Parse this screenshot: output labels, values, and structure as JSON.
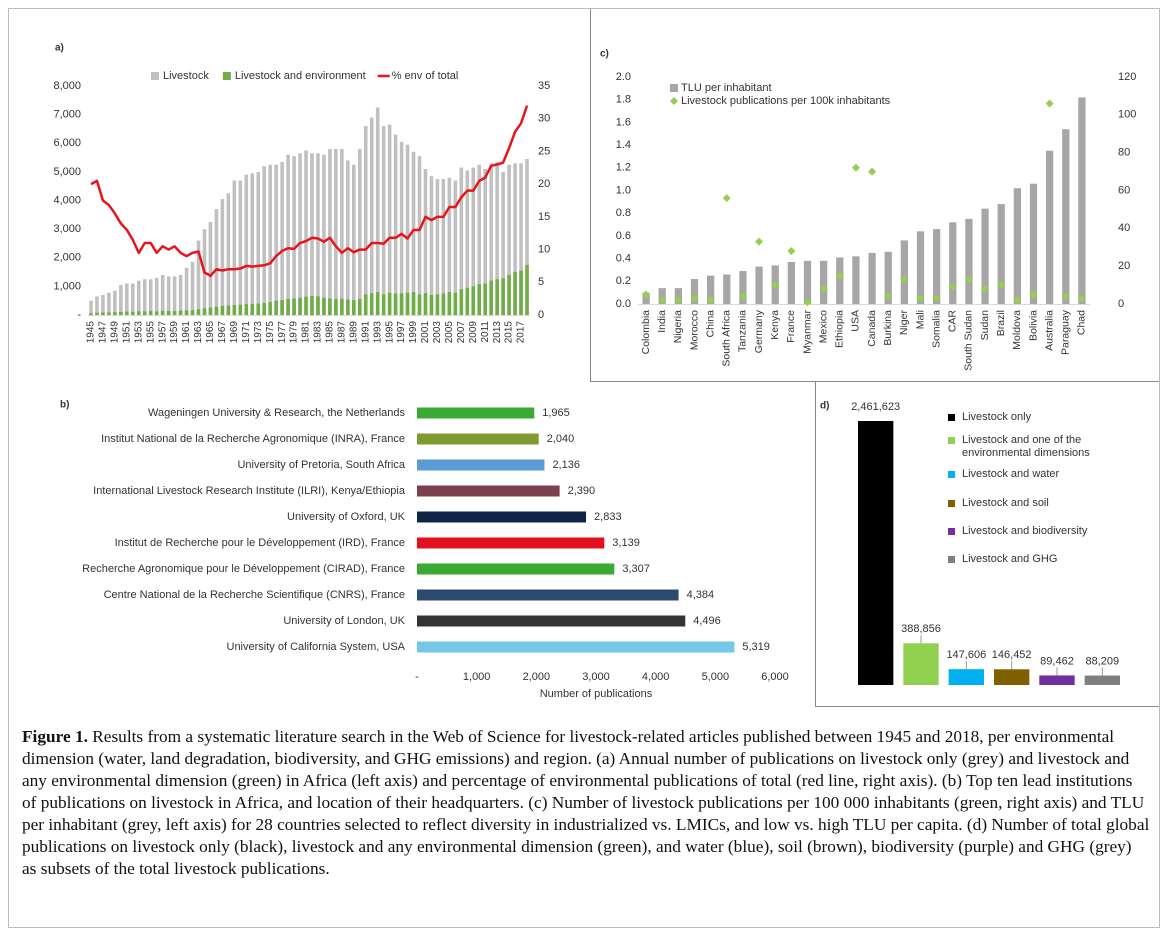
{
  "chart_data": [
    {
      "type": "bar",
      "panel": "a)",
      "legend": "top",
      "categories": [
        "1945",
        null,
        "1947",
        null,
        "1949",
        null,
        "1951",
        null,
        "1953",
        null,
        "1955",
        null,
        "1957",
        null,
        "1959",
        null,
        "1961",
        null,
        "1963",
        null,
        "1965",
        null,
        "1967",
        null,
        "1969",
        null,
        "1971",
        null,
        "1973",
        null,
        "1975",
        null,
        "1977",
        null,
        "1979",
        null,
        "1981",
        null,
        "1983",
        null,
        "1985",
        null,
        "1987",
        null,
        "1989",
        null,
        "1991",
        null,
        "1993",
        null,
        "1995",
        null,
        "1997",
        null,
        "1999",
        null,
        "2001",
        null,
        "2003",
        null,
        "2005",
        null,
        "2007",
        null,
        "2009",
        null,
        "2011",
        null,
        "2013",
        null,
        "2015",
        null,
        "2017",
        null
      ],
      "series": [
        {
          "name": "Livestock",
          "color": "#c0c0c0",
          "values": [
            500,
            650,
            700,
            780,
            850,
            1050,
            1100,
            1100,
            1200,
            1250,
            1250,
            1300,
            1400,
            1350,
            1350,
            1400,
            1650,
            1850,
            2600,
            3000,
            3250,
            3700,
            4050,
            4250,
            4700,
            4700,
            4900,
            4950,
            5000,
            5200,
            5250,
            5250,
            5350,
            5600,
            5550,
            5650,
            5750,
            5650,
            5650,
            5600,
            5800,
            5800,
            5800,
            5400,
            5250,
            5800,
            6600,
            6900,
            7250,
            6600,
            6650,
            6300,
            6050,
            5950,
            5700,
            5550,
            5100,
            4850,
            4750,
            4750,
            4800,
            4700,
            5150,
            5050,
            5150,
            5250,
            5100,
            5300,
            5350,
            5000,
            5250,
            5300,
            5300,
            5450
          ]
        },
        {
          "name": "Livestock and environment",
          "color": "#70ad47",
          "values": [
            60,
            80,
            90,
            90,
            100,
            110,
            120,
            110,
            130,
            130,
            140,
            130,
            150,
            140,
            140,
            150,
            160,
            170,
            200,
            230,
            260,
            290,
            320,
            330,
            350,
            360,
            380,
            390,
            400,
            420,
            450,
            500,
            520,
            560,
            580,
            600,
            640,
            660,
            650,
            600,
            580,
            560,
            560,
            540,
            520,
            560,
            720,
            760,
            800,
            720,
            780,
            750,
            760,
            780,
            800,
            720,
            760,
            700,
            720,
            750,
            800,
            780,
            900,
            950,
            1000,
            1080,
            1100,
            1200,
            1250,
            1280,
            1400,
            1500,
            1550,
            1750
          ]
        },
        {
          "name": "% env of total",
          "color": "#e8141c",
          "type": "line",
          "axis": "y2",
          "values": [
            20,
            20.5,
            17.5,
            16.8,
            15.5,
            14,
            13,
            11.5,
            9.5,
            11,
            11,
            9.5,
            10.5,
            10,
            10.5,
            9.5,
            9,
            9.5,
            9.7,
            6.5,
            6,
            7,
            6.8,
            7,
            7,
            7.1,
            7.5,
            7.4,
            7.5,
            7.6,
            7.9,
            9,
            9.8,
            10.2,
            10.1,
            11,
            11.3,
            11.8,
            11.7,
            11.2,
            11.8,
            10.5,
            9.5,
            10.2,
            9.6,
            10,
            10,
            11,
            11,
            10.9,
            11.8,
            11.8,
            12.4,
            11.7,
            13,
            13,
            15,
            14.5,
            15,
            15,
            16.5,
            16.5,
            18,
            19,
            19,
            20.5,
            21,
            22.8,
            23,
            23.3,
            25.5,
            28,
            29.3,
            32
          ]
        }
      ],
      "ylim": [
        0,
        8000
      ],
      "yticks": [
        {
          "value": 0,
          "label": "-"
        },
        {
          "value": 1000,
          "label": "1,000"
        },
        {
          "value": 2000,
          "label": "2,000"
        },
        {
          "value": 3000,
          "label": "3,000"
        },
        {
          "value": 4000,
          "label": "4,000"
        },
        {
          "value": 5000,
          "label": "5,000"
        },
        {
          "value": 6000,
          "label": "6,000"
        },
        {
          "value": 7000,
          "label": "7,000"
        },
        {
          "value": 8000,
          "label": "8,000"
        }
      ],
      "y2lim": [
        0,
        35
      ],
      "y2ticks": [
        0,
        5,
        10,
        15,
        20,
        25,
        30,
        35
      ]
    },
    {
      "type": "barh",
      "panel": "b)",
      "categories": [
        "Wageningen University & Research, the Netherlands",
        "Institut National de la Recherche Agronomique (INRA), France",
        "University of Pretoria, South Africa",
        "International Livestock Research Institute (ILRI), Kenya/Ethiopia",
        "University of Oxford, UK",
        "Institut de Recherche pour le Développement (IRD), France",
        "Recherche Agronomique pour le Développement (CIRAD), France",
        "Centre National de la Recherche Scientifique (CNRS), France",
        "University of London, UK",
        "University of California System, USA"
      ],
      "values": [
        1965,
        2040,
        2136,
        2390,
        2833,
        3139,
        3307,
        4384,
        4496,
        5319
      ],
      "value_labels": [
        "1,965",
        "2,040",
        "2,136",
        "2,390",
        "2,833",
        "3,139",
        "3,307",
        "4,384",
        "4,496",
        "5,319"
      ],
      "colors": [
        "#3aaa35",
        "#7f9a2e",
        "#5b9bd5",
        "#7b3f4e",
        "#0f2545",
        "#e3101e",
        "#3aaa35",
        "#2a4b6e",
        "#333333",
        "#74c7e9"
      ],
      "xlim": [
        0,
        6000
      ],
      "xticks": [
        {
          "value": 0,
          "label": "-"
        },
        {
          "value": 1000,
          "label": "1,000"
        },
        {
          "value": 2000,
          "label": "2,000"
        },
        {
          "value": 3000,
          "label": "3,000"
        },
        {
          "value": 4000,
          "label": "4,000"
        },
        {
          "value": 5000,
          "label": "5,000"
        },
        {
          "value": 6000,
          "label": "6,000"
        }
      ],
      "xlabel": "Number of publications"
    },
    {
      "type": "bar",
      "panel": "c)",
      "legend": "upper left",
      "categories": [
        "Colombia",
        "India",
        "Nigeria",
        "Morocco",
        "China",
        "South Africa",
        "Tanzania",
        "Germany",
        "Kenya",
        "France",
        "Myanmar",
        "Mexico",
        "Ethiopia",
        "USA",
        "Canada",
        "Burkina",
        "Niger",
        "Mali",
        "Somalia",
        "CAR",
        "South Sudan",
        "Sudan",
        "Brazil",
        "Moldova",
        "Bolivia",
        "Australia",
        "Paraguay",
        "Chad"
      ],
      "series": [
        {
          "name": "TLU per inhabitant",
          "color": "#a6a6a6",
          "values": [
            0.1,
            0.14,
            0.14,
            0.22,
            0.25,
            0.26,
            0.29,
            0.33,
            0.34,
            0.37,
            0.38,
            0.38,
            0.41,
            0.42,
            0.45,
            0.46,
            0.56,
            0.64,
            0.66,
            0.72,
            0.75,
            0.84,
            0.88,
            1.02,
            1.06,
            1.35,
            1.54,
            1.82
          ]
        },
        {
          "name": "Livestock publications per 100k inhabitants",
          "color": "#92d050",
          "type": "scatter",
          "axis": "y2",
          "values": [
            5,
            2,
            2,
            3,
            2,
            56,
            4,
            33,
            10,
            28,
            1,
            8,
            15,
            72,
            70,
            4,
            13,
            3,
            3,
            9,
            13,
            8,
            10,
            2,
            5,
            106,
            4,
            3
          ]
        }
      ],
      "ylim": [
        0,
        2
      ],
      "yticks": [
        {
          "value": 0,
          "label": "0.0"
        },
        0.2,
        0.4,
        0.6,
        0.8,
        {
          "value": 1,
          "label": "1.0"
        },
        1.2,
        1.4,
        1.6,
        1.8,
        {
          "value": 2,
          "label": "2.0"
        }
      ],
      "y2lim": [
        0,
        120
      ],
      "y2ticks": [
        0,
        20,
        40,
        60,
        80,
        100,
        120
      ]
    },
    {
      "type": "bar",
      "panel": "d)",
      "legend": "right",
      "categories": [
        "Livestock only",
        "Livestock and one of the environmental dimensions",
        "Livestock and water",
        "Livestock and soil",
        "Livestock and biodiversity",
        "Livestock and GHG"
      ],
      "values": [
        2461623,
        388856,
        147606,
        146452,
        89462,
        88209
      ],
      "value_labels": [
        "2,461,623",
        "388,856",
        "147,606",
        "146,452",
        "89,462",
        "88,209"
      ],
      "colors": [
        "#000000",
        "#92d050",
        "#00b0f0",
        "#7f6000",
        "#7030a0",
        "#7f7f7f"
      ]
    }
  ],
  "caption": {
    "label": "Figure 1.",
    "text": "Results from a systematic literature search in the Web of Science for livestock-related articles published between 1945 and 2018, per environmental dimension (water, land degradation, biodiversity, and GHG emissions) and region. (a) Annual number of publications on livestock only (grey) and livestock and any environmental dimension (green) in Africa (left axis) and percentage of environmental publications of total (red line, right axis). (b) Top ten lead institutions of publications on livestock in Africa, and location of their headquarters. (c) Number of livestock publications per 100 000 inhabitants (green, right axis) and TLU per inhabitant (grey, left axis) for 28 countries selected to reflect diversity in industrialized vs. LMICs, and low vs. high TLU per capita. (d) Number of total global publications on livestock only (black), livestock and any environmental dimension (green), and water (blue), soil (brown), biodiversity (purple) and GHG (grey) as subsets of the total livestock publications."
  }
}
